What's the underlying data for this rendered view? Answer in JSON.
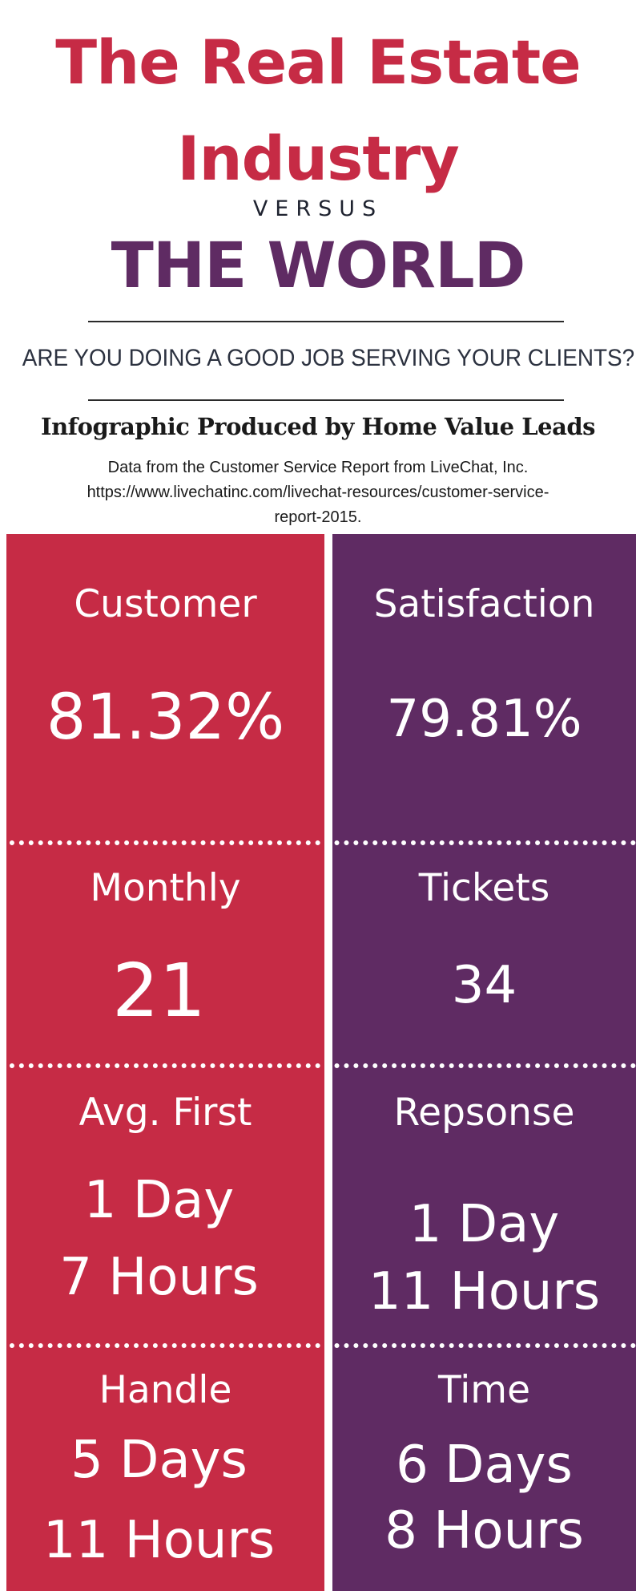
{
  "header": {
    "title_line1": "The Real Estate",
    "title_line2": "Industry",
    "versus": "VERSUS",
    "title_line3": "THE WORLD",
    "question": "ARE YOU DOING A GOOD JOB SERVING YOUR CLIENTS?",
    "credit": "Infographic Produced by Home Value Leads",
    "source_line1": "Data from the Customer Service Report from LiveChat, Inc.",
    "source_line2": "https://www.livechatinc.com/livechat-resources/customer-service-",
    "source_line3": "report-2015."
  },
  "colors": {
    "real_estate": "#c62b45",
    "world": "#5f2b63",
    "text_dark": "#1f2330"
  },
  "sections": [
    {
      "left_label": "Customer",
      "right_label": "Satisfaction",
      "left_value": "81.32%",
      "right_value": "79.81%"
    },
    {
      "left_label": "Monthly",
      "right_label": "Tickets",
      "left_value": "21",
      "right_value": "34"
    },
    {
      "left_label": "Avg. First",
      "right_label": "Repsonse",
      "left_value_line1": "1 Day",
      "left_value_line2": "7 Hours",
      "right_value_line1": "1 Day",
      "right_value_line2": "11 Hours"
    },
    {
      "left_label": "Handle",
      "right_label": "Time",
      "left_value_line1": "5 Days",
      "left_value_line2": "11 Hours",
      "right_value_line1": "6 Days",
      "right_value_line2": "8 Hours"
    }
  ]
}
